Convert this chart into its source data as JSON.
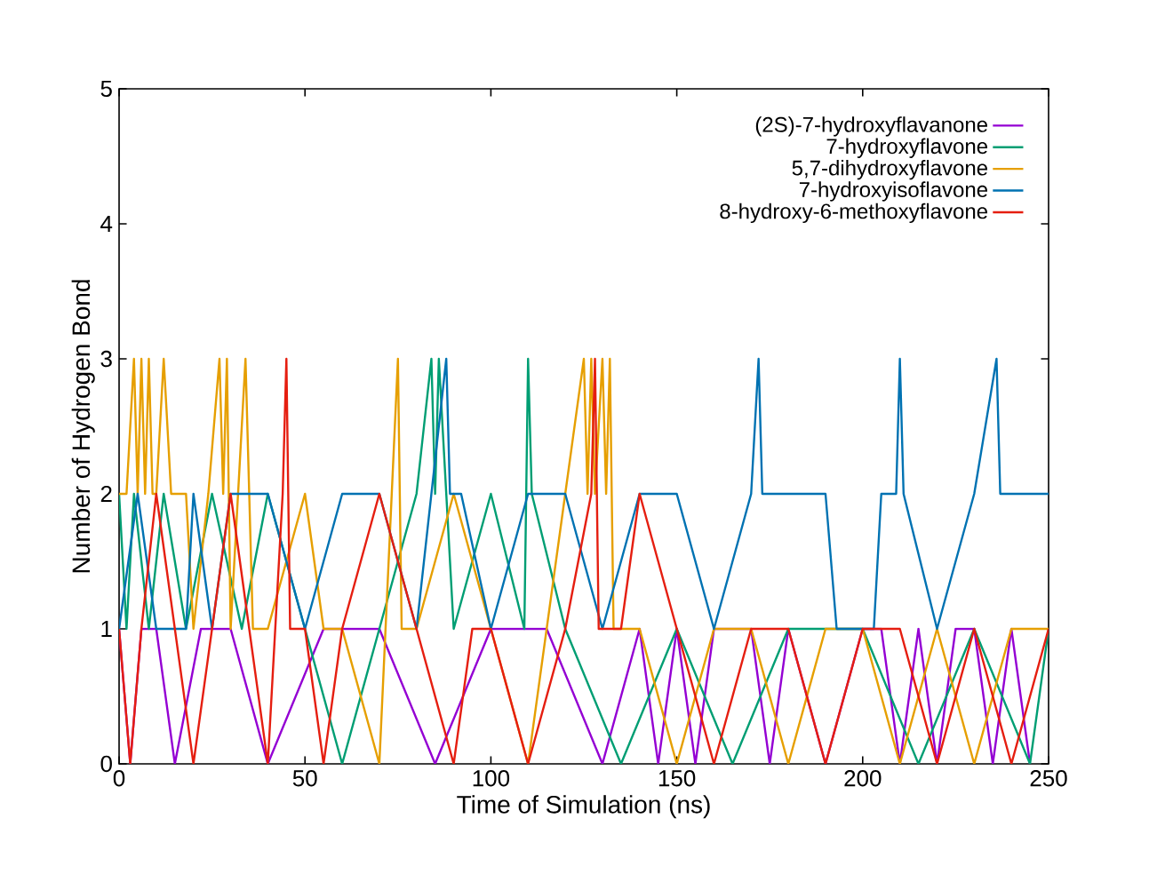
{
  "chart_data": {
    "type": "line",
    "xlabel": "Time of Simulation (ns)",
    "ylabel": "Number of Hydrogen Bond",
    "xlim": [
      0,
      250
    ],
    "ylim": [
      0,
      5
    ],
    "xticks": [
      0,
      50,
      100,
      150,
      200,
      250
    ],
    "yticks": [
      0,
      1,
      2,
      3,
      4,
      5
    ],
    "legend": "top right",
    "grid": false,
    "marker": "none",
    "line_style": "solid",
    "series": [
      {
        "name": "(2S)-7-hydroxyflavanone",
        "color": "#9400d3",
        "x": [
          0,
          3,
          6,
          10,
          15,
          22,
          30,
          40,
          55,
          70,
          85,
          100,
          115,
          130,
          140,
          145,
          150,
          155,
          160,
          170,
          175,
          180,
          190,
          200,
          205,
          210,
          215,
          220,
          225,
          230,
          235,
          240,
          245
        ],
        "values": [
          1,
          0,
          1,
          1,
          0,
          1,
          1,
          0,
          1,
          1,
          0,
          1,
          1,
          0,
          1,
          0,
          1,
          0,
          1,
          1,
          0,
          1,
          0,
          1,
          1,
          0,
          1,
          0,
          1,
          1,
          0,
          1,
          0
        ]
      },
      {
        "name": "7-hydroxyflavone",
        "color": "#009e73",
        "x": [
          0,
          2,
          4,
          8,
          12,
          18,
          25,
          33,
          40,
          50,
          60,
          70,
          80,
          84,
          85,
          86,
          90,
          100,
          109,
          110,
          111,
          120,
          135,
          150,
          165,
          180,
          200,
          215,
          230,
          245,
          250
        ],
        "values": [
          2,
          1,
          2,
          1,
          2,
          1,
          2,
          1,
          2,
          1,
          0,
          1,
          2,
          3,
          2,
          3,
          1,
          2,
          1,
          3,
          2,
          1,
          0,
          1,
          0,
          1,
          1,
          0,
          1,
          0,
          1
        ]
      },
      {
        "name": "5,7-dihydroxyflavone",
        "color": "#e69f00",
        "x": [
          0,
          2,
          4,
          5,
          6,
          7,
          8,
          9,
          10,
          12,
          14,
          16,
          18,
          20,
          24,
          27,
          28,
          29,
          30,
          34,
          35,
          36,
          40,
          50,
          55,
          60,
          70,
          75,
          76,
          80,
          90,
          100,
          110,
          120,
          125,
          126,
          127,
          128,
          130,
          131,
          132,
          133,
          140,
          150,
          160,
          170,
          180,
          190,
          200,
          210,
          220,
          230,
          240,
          250
        ],
        "values": [
          2,
          2,
          3,
          2,
          3,
          2,
          3,
          2,
          2,
          3,
          2,
          2,
          2,
          1,
          2,
          3,
          2,
          3,
          1,
          3,
          2,
          1,
          1,
          2,
          1,
          1,
          0,
          3,
          1,
          1,
          2,
          1,
          0,
          2,
          3,
          2,
          3,
          2,
          3,
          2,
          3,
          1,
          1,
          0,
          1,
          1,
          0,
          1,
          1,
          0,
          1,
          0,
          1,
          1
        ]
      },
      {
        "name": "7-hydroxyisoflavone",
        "color": "#0072b2",
        "x": [
          0,
          5,
          10,
          18,
          20,
          25,
          30,
          40,
          50,
          60,
          70,
          80,
          88,
          89,
          92,
          100,
          110,
          120,
          130,
          140,
          150,
          160,
          170,
          172,
          173,
          180,
          190,
          193,
          203,
          205,
          209,
          210,
          211,
          220,
          230,
          236,
          237,
          240,
          250
        ],
        "values": [
          1,
          2,
          1,
          1,
          2,
          1,
          2,
          2,
          1,
          2,
          2,
          1,
          3,
          2,
          2,
          1,
          2,
          2,
          1,
          2,
          2,
          1,
          2,
          3,
          2,
          2,
          2,
          1,
          1,
          2,
          2,
          3,
          2,
          1,
          2,
          3,
          2,
          2,
          2
        ]
      },
      {
        "name": "8-hydroxy-6-methoxyflavone",
        "color": "#e51e10",
        "x": [
          0,
          3,
          6,
          10,
          15,
          20,
          25,
          30,
          35,
          40,
          44,
          45,
          46,
          50,
          55,
          60,
          70,
          80,
          90,
          95,
          100,
          110,
          120,
          127,
          128,
          129,
          135,
          140,
          150,
          160,
          170,
          180,
          190,
          200,
          210,
          220,
          230,
          240,
          250
        ],
        "values": [
          1,
          0,
          1,
          2,
          1,
          0,
          1,
          2,
          1,
          0,
          2,
          3,
          1,
          1,
          0,
          1,
          2,
          1,
          0,
          1,
          1,
          0,
          1,
          2,
          3,
          1,
          1,
          2,
          1,
          0,
          1,
          1,
          0,
          1,
          1,
          0,
          1,
          0,
          1
        ]
      }
    ]
  }
}
